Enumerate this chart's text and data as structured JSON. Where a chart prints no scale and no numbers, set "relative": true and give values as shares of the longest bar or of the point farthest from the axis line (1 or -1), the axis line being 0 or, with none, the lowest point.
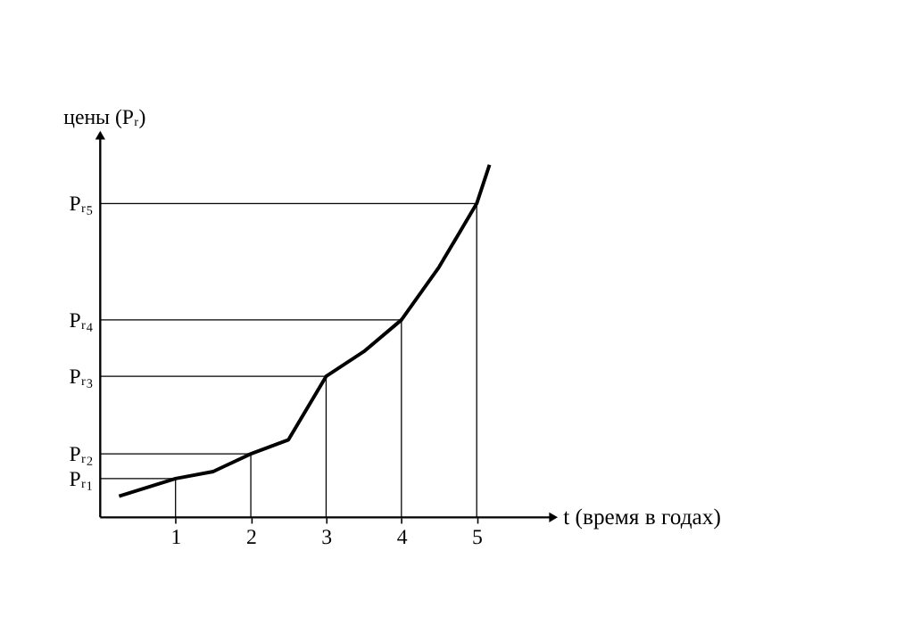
{
  "chart_data": {
    "type": "line",
    "relative": true,
    "ylabel": "цены (Pᵣ)",
    "xlabel": "t (время в годах)",
    "xlim": [
      0,
      6
    ],
    "xticks": [
      1,
      2,
      3,
      4,
      5
    ],
    "grid": false,
    "marker": "none",
    "line_style": "solid",
    "series": [
      {
        "color": "#000000",
        "x": [
          0.25,
          1,
          1.5,
          2,
          2.5,
          3,
          3.5,
          4,
          4.5,
          5,
          5.17
        ],
        "values": [
          0.06,
          0.11,
          0.13,
          0.18,
          0.22,
          0.4,
          0.47,
          0.56,
          0.71,
          0.89,
          1
        ]
      },
      {
        "name": "Pᵣ₁",
        "color": "#000000",
        "x": [
          0,
          1,
          1
        ],
        "values": [
          0.11,
          0.11,
          0
        ]
      },
      {
        "name": "Pᵣ₂",
        "color": "#000000",
        "x": [
          0,
          2,
          2
        ],
        "values": [
          0.18,
          0.18,
          0
        ]
      },
      {
        "name": "Pᵣ₃",
        "color": "#000000",
        "x": [
          0,
          3,
          3
        ],
        "values": [
          0.4,
          0.4,
          0
        ]
      },
      {
        "name": "Pᵣ₄",
        "color": "#000000",
        "x": [
          0,
          4,
          4
        ],
        "values": [
          0.56,
          0.56,
          0
        ]
      },
      {
        "name": "Pᵣ₅",
        "color": "#000000",
        "x": [
          0,
          5,
          5
        ],
        "values": [
          0.89,
          0.89,
          0
        ]
      }
    ]
  }
}
